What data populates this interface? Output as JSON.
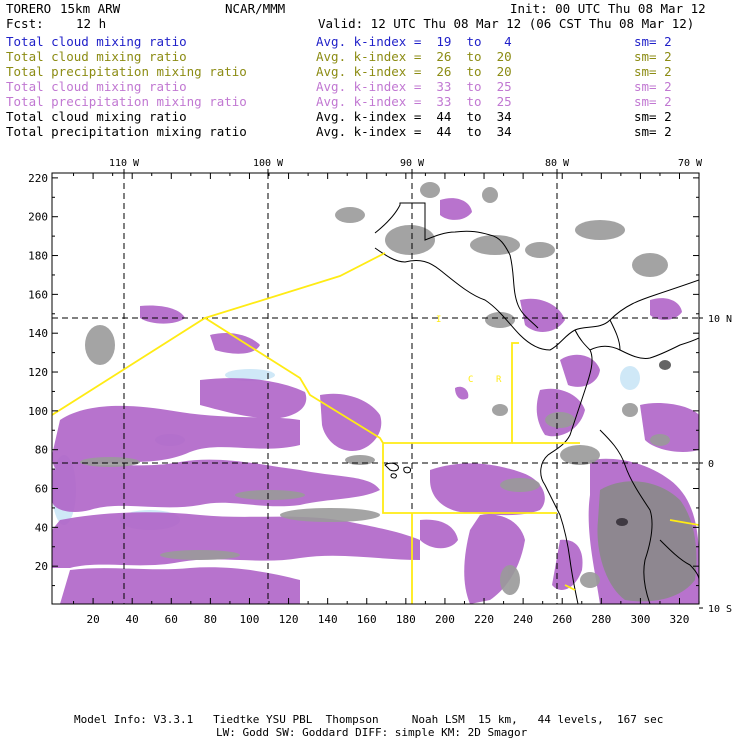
{
  "header": {
    "model": "TORERO",
    "resolution": "15km ARW",
    "center": "NCAR/MMM",
    "init": "Init: 00 UTC Thu 08 Mar 12",
    "fcst_label": "Fcst:",
    "fcst_value": "12 h",
    "valid": "Valid: 12 UTC Thu 08 Mar 12 (06 CST Thu 08 Mar 12)"
  },
  "legend": [
    {
      "field": "Total cloud mixing ratio",
      "kindex": "Avg. k-index =  19  to   4",
      "sm": "sm= 2",
      "color": "#1f1fc8"
    },
    {
      "field": "Total cloud mixing ratio",
      "kindex": "Avg. k-index =  26  to  20",
      "sm": "sm= 2",
      "color": "#8c8c14"
    },
    {
      "field": "Total precipitation mixing ratio",
      "kindex": "Avg. k-index =  26  to  20",
      "sm": "sm= 2",
      "color": "#8c8c14"
    },
    {
      "field": "Total cloud mixing ratio",
      "kindex": "Avg. k-index =  33  to  25",
      "sm": "sm= 2",
      "color": "#c178d2"
    },
    {
      "field": "Total precipitation mixing ratio",
      "kindex": "Avg. k-index =  33  to  25",
      "sm": "sm= 2",
      "color": "#c178d2"
    },
    {
      "field": "Total cloud mixing ratio",
      "kindex": "Avg. k-index =  44  to  34",
      "sm": "sm= 2",
      "color": "#000000"
    },
    {
      "field": "Total precipitation mixing ratio",
      "kindex": "Avg. k-index =  44  to  34",
      "sm": "sm= 2",
      "color": "#000000"
    }
  ],
  "map": {
    "lon_labels": [
      "110 W",
      "100 W",
      "90 W",
      "80 W",
      "70 W"
    ],
    "lat_labels": [
      "10 N",
      "0",
      "10 S"
    ],
    "x_ticks": [
      "20",
      "40",
      "60",
      "80",
      "100",
      "120",
      "140",
      "160",
      "180",
      "200",
      "220",
      "240",
      "260",
      "280",
      "300",
      "320"
    ],
    "y_ticks": [
      "220",
      "200",
      "180",
      "160",
      "140",
      "120",
      "100",
      "80",
      "60",
      "40",
      "20"
    ],
    "labels": [
      "I",
      "C",
      "R"
    ],
    "colors": {
      "precip": "#b064c8",
      "cloud_gray": "#9a9a9a",
      "cloud_light": "#c8e6f5",
      "box": "#ffeb14",
      "coast": "#000000"
    }
  },
  "footer": {
    "line1": "Model Info: V3.3.1   Tiedtke YSU PBL  Thompson     Noah LSM  15 km,   44 levels,  167 sec",
    "line2": "LW: Godd SW: Goddard DIFF: simple KM: 2D Smagor"
  }
}
